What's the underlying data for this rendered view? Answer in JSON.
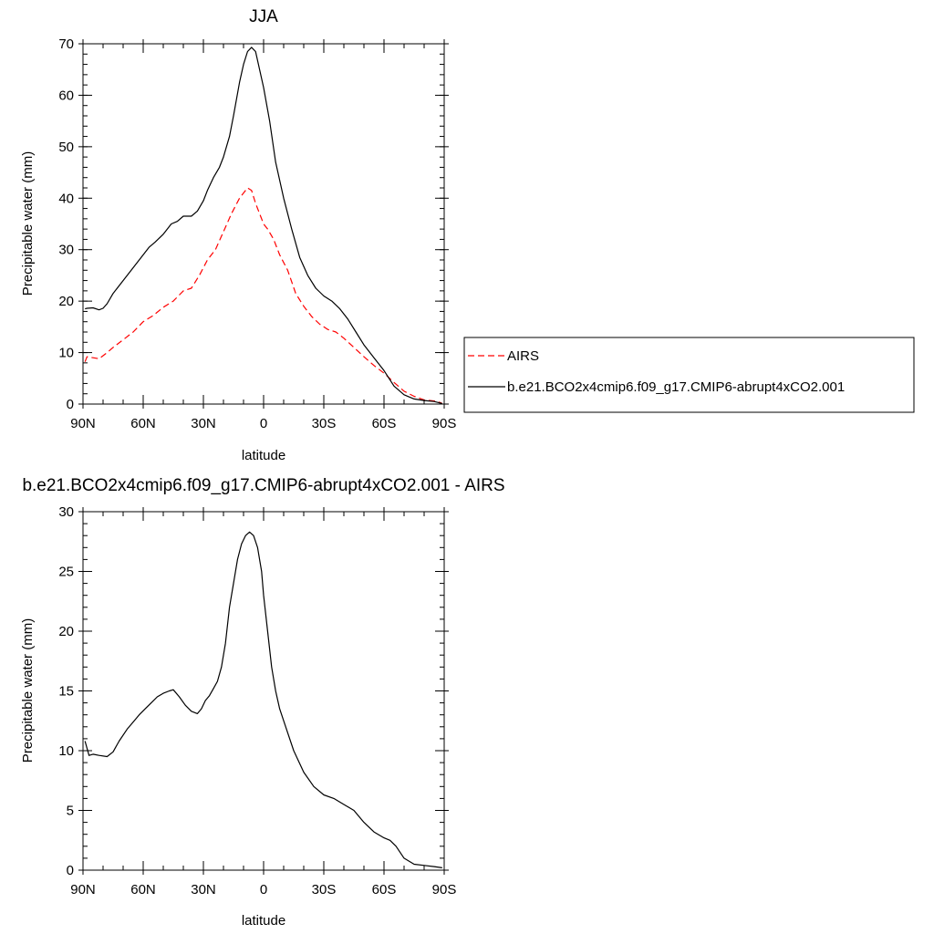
{
  "chart_data": [
    {
      "type": "line",
      "title": "JJA",
      "xlabel": "latitude",
      "ylabel": "Precipitable water (mm)",
      "xlim": [
        90,
        -90
      ],
      "ylim": [
        0,
        70
      ],
      "xticks": [
        90,
        60,
        30,
        0,
        -30,
        -60,
        -90
      ],
      "xticklabels": [
        "90N",
        "60N",
        "30N",
        "0",
        "30S",
        "60S",
        "90S"
      ],
      "yticks": [
        0,
        10,
        20,
        30,
        40,
        50,
        60,
        70
      ],
      "yticklabels": [
        "0",
        "10",
        "20",
        "30",
        "40",
        "50",
        "60",
        "70"
      ],
      "legend_position": "right",
      "series": [
        {
          "name": "AIRS",
          "color": "#ff0000",
          "dash": "dashed",
          "x": [
            89,
            88,
            85,
            82,
            78,
            75,
            70,
            65,
            60,
            55,
            50,
            45,
            40,
            36,
            32,
            28,
            24,
            20,
            16,
            12,
            8,
            6,
            4,
            2,
            0,
            -2,
            -5,
            -8,
            -12,
            -16,
            -20,
            -24,
            -28,
            -32,
            -36,
            -40,
            -45,
            -50,
            -55,
            -60,
            -65,
            -70,
            -75,
            -80,
            -85,
            -88,
            -89
          ],
          "y": [
            8.2,
            9.2,
            9.0,
            8.8,
            10.0,
            11.0,
            12.5,
            14.0,
            16.0,
            17.2,
            18.8,
            20.0,
            22.0,
            22.5,
            25.0,
            28.0,
            30.0,
            33.5,
            37.0,
            40.0,
            42.0,
            41.5,
            39.0,
            37.0,
            35.0,
            34.0,
            32.0,
            29.0,
            26.0,
            21.5,
            19.0,
            17.0,
            15.5,
            14.5,
            14.0,
            12.8,
            11.0,
            9.2,
            7.5,
            6.0,
            4.2,
            2.5,
            1.5,
            0.8,
            0.6,
            0.3,
            0.1
          ]
        },
        {
          "name": "b.e21.BCO2x4cmip6.f09_g17.CMIP6-abrupt4xCO2.001",
          "color": "#000000",
          "dash": "solid",
          "x": [
            89,
            88,
            85,
            82,
            80,
            78,
            75,
            70,
            65,
            60,
            57,
            54,
            50,
            46,
            43,
            40,
            36,
            33,
            30,
            28,
            25,
            22,
            20,
            17,
            15,
            12,
            10,
            8,
            6,
            4,
            2,
            0,
            -3,
            -6,
            -10,
            -14,
            -18,
            -22,
            -26,
            -30,
            -34,
            -38,
            -42,
            -46,
            -50,
            -55,
            -60,
            -65,
            -70,
            -75,
            -80,
            -85,
            -89
          ],
          "y": [
            18.5,
            18.6,
            18.7,
            18.3,
            18.6,
            19.5,
            21.5,
            24.0,
            26.5,
            29.0,
            30.5,
            31.5,
            33.0,
            35.0,
            35.5,
            36.5,
            36.5,
            37.5,
            39.5,
            41.5,
            44.0,
            46.0,
            48.0,
            52.0,
            56.0,
            62.5,
            66.0,
            68.5,
            69.3,
            68.5,
            65.0,
            61.5,
            55.0,
            47.0,
            40.0,
            34.0,
            28.5,
            25.0,
            22.5,
            21.0,
            20.0,
            18.5,
            16.5,
            14.0,
            11.5,
            9.0,
            6.5,
            3.5,
            1.8,
            1.0,
            0.7,
            0.5,
            0.1
          ]
        }
      ]
    },
    {
      "type": "line",
      "title": "b.e21.BCO2x4cmip6.f09_g17.CMIP6-abrupt4xCO2.001 - AIRS",
      "xlabel": "latitude",
      "ylabel": "Precipitable water (mm)",
      "xlim": [
        90,
        -90
      ],
      "ylim": [
        0,
        30
      ],
      "xticks": [
        90,
        60,
        30,
        0,
        -30,
        -60,
        -90
      ],
      "xticklabels": [
        "90N",
        "60N",
        "30N",
        "0",
        "30S",
        "60S",
        "90S"
      ],
      "yticks": [
        0,
        5,
        10,
        15,
        20,
        25,
        30
      ],
      "yticklabels": [
        "0",
        "5",
        "10",
        "15",
        "20",
        "25",
        "30"
      ],
      "series": [
        {
          "color": "#000000",
          "dash": "solid",
          "x": [
            89,
            87,
            85,
            82,
            78,
            75,
            72,
            68,
            65,
            62,
            59,
            56,
            53,
            50,
            47,
            45,
            42,
            39,
            36,
            33,
            31,
            29,
            27,
            25,
            23,
            21,
            19,
            17,
            15,
            13,
            11,
            9,
            7,
            5,
            3,
            1,
            0,
            -2,
            -4,
            -6,
            -8,
            -11,
            -15,
            -20,
            -25,
            -30,
            -35,
            -40,
            -45,
            -50,
            -55,
            -60,
            -63,
            -66,
            -70,
            -75,
            -80,
            -85,
            -89
          ],
          "y": [
            10.8,
            9.6,
            9.7,
            9.6,
            9.5,
            9.9,
            10.8,
            11.8,
            12.4,
            13.0,
            13.5,
            14.0,
            14.5,
            14.8,
            15.0,
            15.1,
            14.5,
            13.8,
            13.3,
            13.1,
            13.5,
            14.2,
            14.6,
            15.2,
            15.8,
            17.0,
            19.0,
            22.0,
            24.0,
            26.0,
            27.3,
            28.0,
            28.3,
            28.0,
            27.0,
            25.0,
            23.0,
            20.0,
            17.0,
            15.0,
            13.5,
            12.0,
            10.0,
            8.2,
            7.0,
            6.3,
            6.0,
            5.5,
            5.0,
            4.0,
            3.2,
            2.7,
            2.5,
            2.0,
            1.0,
            0.5,
            0.4,
            0.3,
            0.2
          ]
        }
      ]
    }
  ]
}
